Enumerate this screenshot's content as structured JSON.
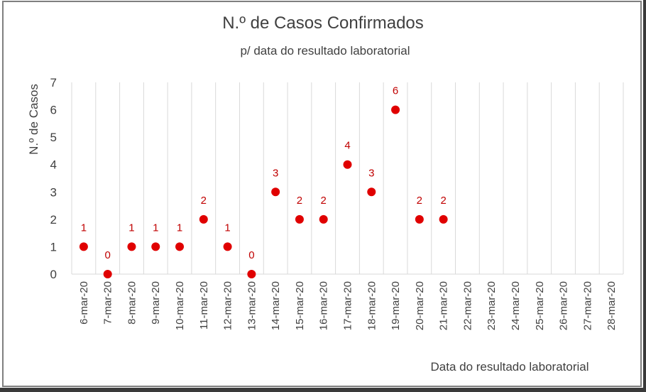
{
  "chart_data": {
    "type": "scatter",
    "title": "N.º de Casos Confirmados",
    "subtitle": "p/ data do resultado laboratorial",
    "xlabel": "Data do resultado laboratorial",
    "ylabel": "N.º de Casos",
    "ylim": [
      0,
      7
    ],
    "yticks": [
      "0",
      "1",
      "2",
      "3",
      "4",
      "5",
      "6",
      "7"
    ],
    "grid": "vertical",
    "marker_color": "#e00000",
    "label_color": "#c00000",
    "categories": [
      "6-mar-20",
      "7-mar-20",
      "8-mar-20",
      "9-mar-20",
      "10-mar-20",
      "11-mar-20",
      "12-mar-20",
      "13-mar-20",
      "14-mar-20",
      "15-mar-20",
      "16-mar-20",
      "17-mar-20",
      "18-mar-20",
      "19-mar-20",
      "20-mar-20",
      "21-mar-20",
      "22-mar-20",
      "23-mar-20",
      "24-mar-20",
      "25-mar-20",
      "26-mar-20",
      "27-mar-20",
      "28-mar-20"
    ],
    "values": [
      1,
      0,
      1,
      1,
      1,
      2,
      1,
      0,
      3,
      2,
      2,
      4,
      3,
      6,
      2,
      2,
      null,
      null,
      null,
      null,
      null,
      null,
      null
    ]
  }
}
